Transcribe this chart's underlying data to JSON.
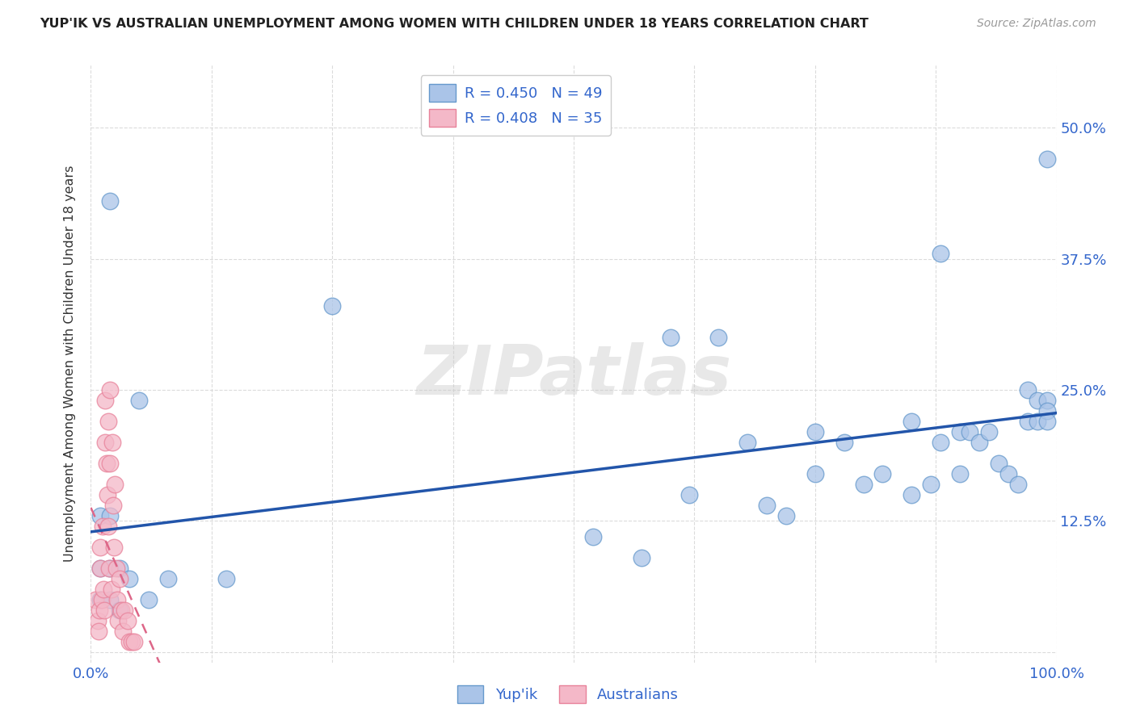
{
  "title": "YUP'IK VS AUSTRALIAN UNEMPLOYMENT AMONG WOMEN WITH CHILDREN UNDER 18 YEARS CORRELATION CHART",
  "source": "Source: ZipAtlas.com",
  "ylabel": "Unemployment Among Women with Children Under 18 years",
  "xlim": [
    0.0,
    1.0
  ],
  "ylim": [
    -0.01,
    0.56
  ],
  "xticks": [
    0.0,
    0.125,
    0.25,
    0.375,
    0.5,
    0.625,
    0.75,
    0.875,
    1.0
  ],
  "xticklabels": [
    "0.0%",
    "",
    "",
    "",
    "",
    "",
    "",
    "",
    "100.0%"
  ],
  "yticks_right": [
    0.0,
    0.125,
    0.25,
    0.375,
    0.5
  ],
  "yticklabels_right": [
    "",
    "12.5%",
    "25.0%",
    "37.5%",
    "50.0%"
  ],
  "background_color": "#ffffff",
  "grid_color": "#d8d8d8",
  "watermark_text": "ZIPatlas",
  "yupik_color": "#aac4e8",
  "yupik_edge_color": "#6699cc",
  "australian_color": "#f4b8c8",
  "australian_edge_color": "#e8829a",
  "trendline_yupik_color": "#2255aa",
  "trendline_australian_color": "#dd6688",
  "R_yupik": 0.45,
  "N_yupik": 49,
  "R_australian": 0.408,
  "N_australian": 35,
  "yupik_x": [
    0.02,
    0.05,
    0.01,
    0.01,
    0.01,
    0.02,
    0.02,
    0.02,
    0.03,
    0.03,
    0.04,
    0.06,
    0.08,
    0.14,
    0.25,
    0.52,
    0.57,
    0.6,
    0.62,
    0.65,
    0.68,
    0.7,
    0.72,
    0.75,
    0.75,
    0.78,
    0.8,
    0.82,
    0.85,
    0.85,
    0.87,
    0.88,
    0.88,
    0.9,
    0.9,
    0.91,
    0.92,
    0.93,
    0.94,
    0.95,
    0.96,
    0.97,
    0.97,
    0.98,
    0.98,
    0.99,
    0.99,
    0.99,
    0.99
  ],
  "yupik_y": [
    0.43,
    0.24,
    0.13,
    0.08,
    0.05,
    0.13,
    0.08,
    0.05,
    0.08,
    0.04,
    0.07,
    0.05,
    0.07,
    0.07,
    0.33,
    0.11,
    0.09,
    0.3,
    0.15,
    0.3,
    0.2,
    0.14,
    0.13,
    0.21,
    0.17,
    0.2,
    0.16,
    0.17,
    0.22,
    0.15,
    0.16,
    0.38,
    0.2,
    0.21,
    0.17,
    0.21,
    0.2,
    0.21,
    0.18,
    0.17,
    0.16,
    0.25,
    0.22,
    0.24,
    0.22,
    0.24,
    0.23,
    0.22,
    0.47
  ],
  "australian_x": [
    0.005,
    0.007,
    0.008,
    0.009,
    0.01,
    0.01,
    0.011,
    0.012,
    0.013,
    0.014,
    0.015,
    0.015,
    0.016,
    0.017,
    0.018,
    0.018,
    0.019,
    0.02,
    0.02,
    0.021,
    0.022,
    0.023,
    0.024,
    0.025,
    0.026,
    0.027,
    0.028,
    0.03,
    0.031,
    0.033,
    0.035,
    0.038,
    0.04,
    0.042,
    0.045
  ],
  "australian_y": [
    0.05,
    0.03,
    0.02,
    0.04,
    0.1,
    0.08,
    0.05,
    0.12,
    0.06,
    0.04,
    0.24,
    0.2,
    0.18,
    0.15,
    0.22,
    0.12,
    0.08,
    0.25,
    0.18,
    0.06,
    0.2,
    0.14,
    0.1,
    0.16,
    0.08,
    0.05,
    0.03,
    0.07,
    0.04,
    0.02,
    0.04,
    0.03,
    0.01,
    0.01,
    0.01
  ]
}
